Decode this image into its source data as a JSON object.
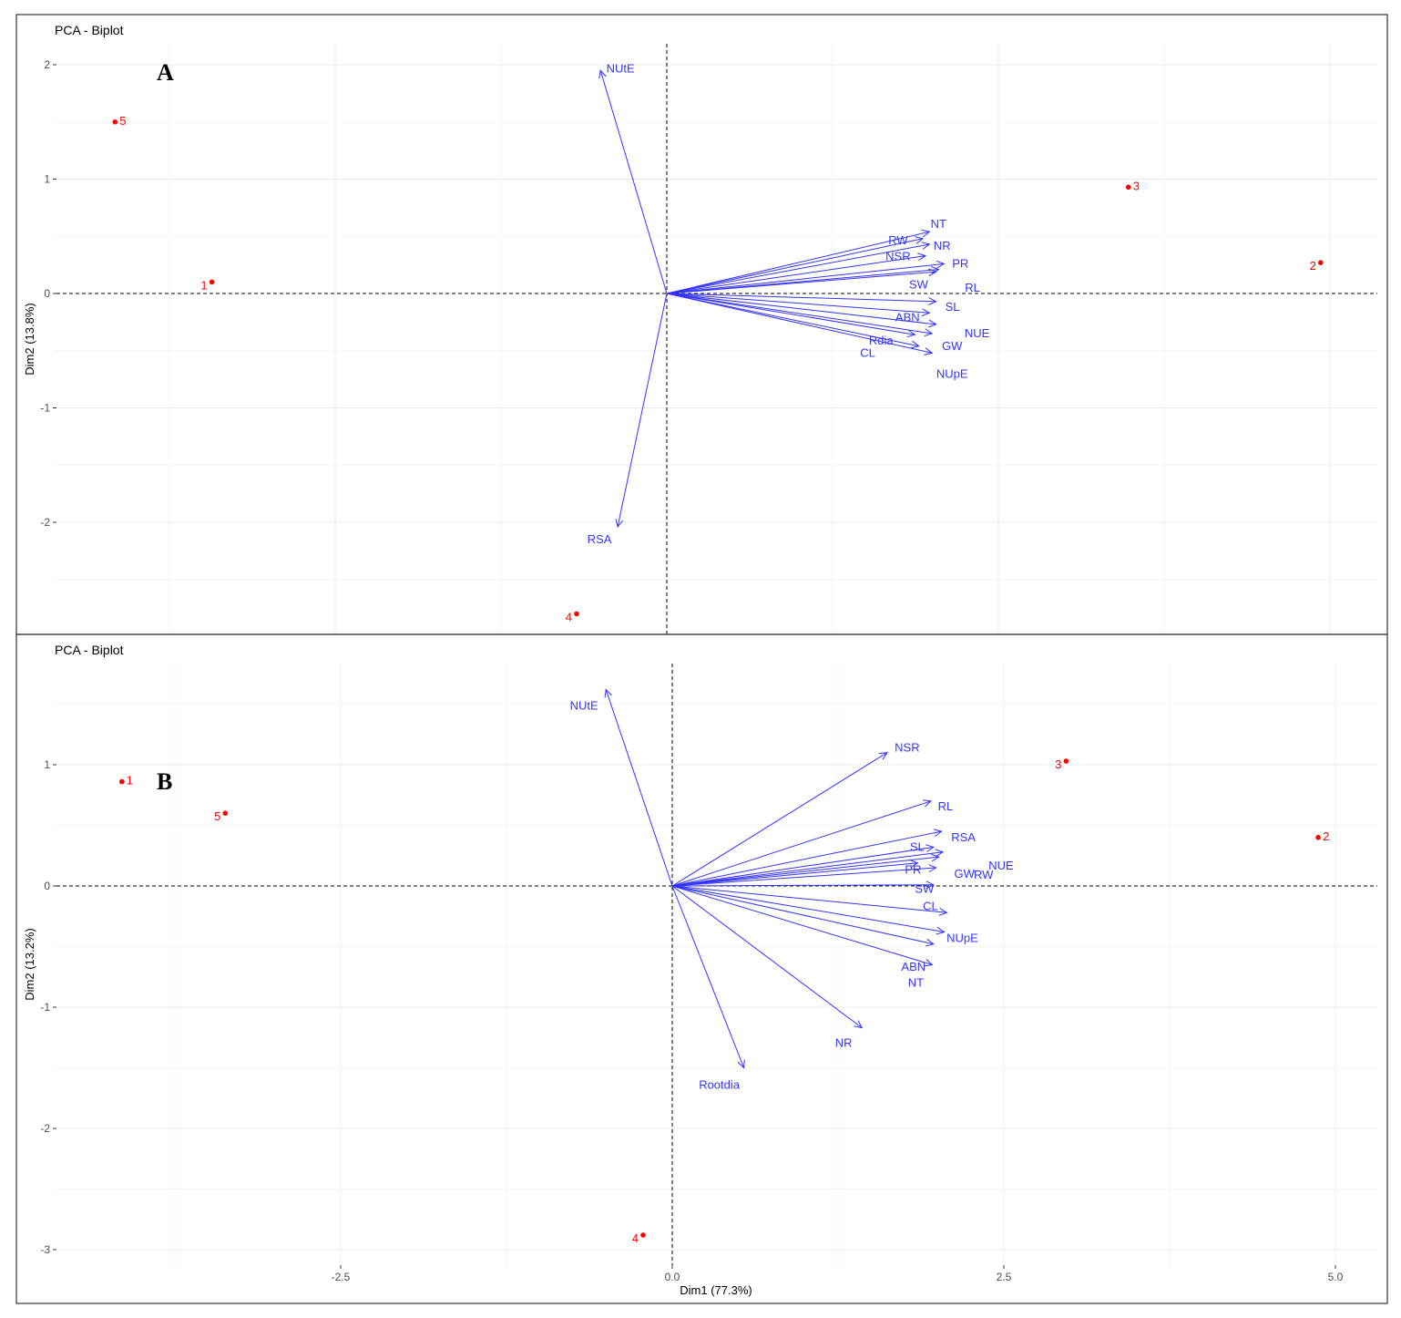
{
  "chart_data": [
    {
      "panel": "A",
      "type": "scatter",
      "title": "PCA - Biplot",
      "xlabel": "",
      "ylabel": "Dim2 (13.8%)",
      "xlim": [
        -4.4,
        5.4
      ],
      "ylim": [
        -2.96,
        2.2
      ],
      "x_ticks": [],
      "y_ticks": [
        -2,
        -1,
        0,
        1,
        2
      ],
      "y_tick_labels": [
        "-2",
        "-1",
        "0",
        "1",
        "2"
      ],
      "grid": true,
      "individuals": [
        {
          "label": "1",
          "x": -3.43,
          "y": 0.1
        },
        {
          "label": "2",
          "x": 4.93,
          "y": 0.27
        },
        {
          "label": "3",
          "x": 3.48,
          "y": 0.93
        },
        {
          "label": "4",
          "x": -0.68,
          "y": -2.8
        },
        {
          "label": "5",
          "x": -4.16,
          "y": 1.5
        }
      ],
      "variables": [
        {
          "label": "NUtE",
          "x": -0.5,
          "y": 1.95
        },
        {
          "label": "RSA",
          "x": -0.37,
          "y": -2.04
        },
        {
          "label": "NT",
          "x": 1.98,
          "y": 0.54
        },
        {
          "label": "RW",
          "x": 1.93,
          "y": 0.48
        },
        {
          "label": "NR",
          "x": 1.98,
          "y": 0.43
        },
        {
          "label": "NSR",
          "x": 1.95,
          "y": 0.33
        },
        {
          "label": "PR",
          "x": 2.09,
          "y": 0.26
        },
        {
          "label": "SW",
          "x": 2.05,
          "y": 0.21
        },
        {
          "label": "RL",
          "x": 2.03,
          "y": 0.19
        },
        {
          "label": "SL",
          "x": 2.03,
          "y": -0.07
        },
        {
          "label": "ABN",
          "x": 1.98,
          "y": -0.17
        },
        {
          "label": "NUE",
          "x": 2.03,
          "y": -0.27
        },
        {
          "label": "GW",
          "x": 2.0,
          "y": -0.35
        },
        {
          "label": "Rdia",
          "x": 1.87,
          "y": -0.36
        },
        {
          "label": "CL",
          "x": 1.9,
          "y": -0.46
        },
        {
          "label": "NUpE",
          "x": 2.0,
          "y": -0.52
        }
      ]
    },
    {
      "panel": "B",
      "type": "scatter",
      "title": "PCA - Biplot",
      "xlabel": "Dim1 (77.3%)",
      "ylabel": "Dim2 (13.2%)",
      "xlim": [
        -4.4,
        5.4
      ],
      "ylim": [
        -3.15,
        1.8
      ],
      "x_ticks": [
        -2.5,
        0.0,
        2.5,
        5.0
      ],
      "x_tick_labels": [
        "-2.5",
        "0.0",
        "2.5",
        "5.0"
      ],
      "y_ticks": [
        -3,
        -2,
        -1,
        0,
        1
      ],
      "y_tick_labels": [
        "-3",
        "-2",
        "-1",
        "0",
        "1"
      ],
      "grid": true,
      "individuals": [
        {
          "label": "1",
          "x": -4.15,
          "y": 0.86
        },
        {
          "label": "2",
          "x": 4.87,
          "y": 0.4
        },
        {
          "label": "3",
          "x": 2.97,
          "y": 1.03
        },
        {
          "label": "4",
          "x": -0.22,
          "y": -2.88
        },
        {
          "label": "5",
          "x": -3.37,
          "y": 0.6
        }
      ],
      "variables": [
        {
          "label": "NUtE",
          "x": -0.5,
          "y": 1.62
        },
        {
          "label": "NSR",
          "x": 1.62,
          "y": 1.1
        },
        {
          "label": "RL",
          "x": 1.95,
          "y": 0.7
        },
        {
          "label": "RSA",
          "x": 2.03,
          "y": 0.45
        },
        {
          "label": "SL",
          "x": 1.97,
          "y": 0.32
        },
        {
          "label": "NUE",
          "x": 2.04,
          "y": 0.28
        },
        {
          "label": "GW",
          "x": 2.01,
          "y": 0.24
        },
        {
          "label": "PR",
          "x": 1.85,
          "y": 0.19
        },
        {
          "label": "RW",
          "x": 1.99,
          "y": 0.15
        },
        {
          "label": "SW",
          "x": 1.97,
          "y": 0.01
        },
        {
          "label": "CL",
          "x": 2.07,
          "y": -0.22
        },
        {
          "label": "NUpE",
          "x": 2.05,
          "y": -0.38
        },
        {
          "label": "ABN",
          "x": 1.97,
          "y": -0.48
        },
        {
          "label": "NT",
          "x": 1.96,
          "y": -0.65
        },
        {
          "label": "NR",
          "x": 1.43,
          "y": -1.17
        },
        {
          "label": "Rootdia",
          "x": 0.54,
          "y": -1.5
        }
      ]
    }
  ]
}
